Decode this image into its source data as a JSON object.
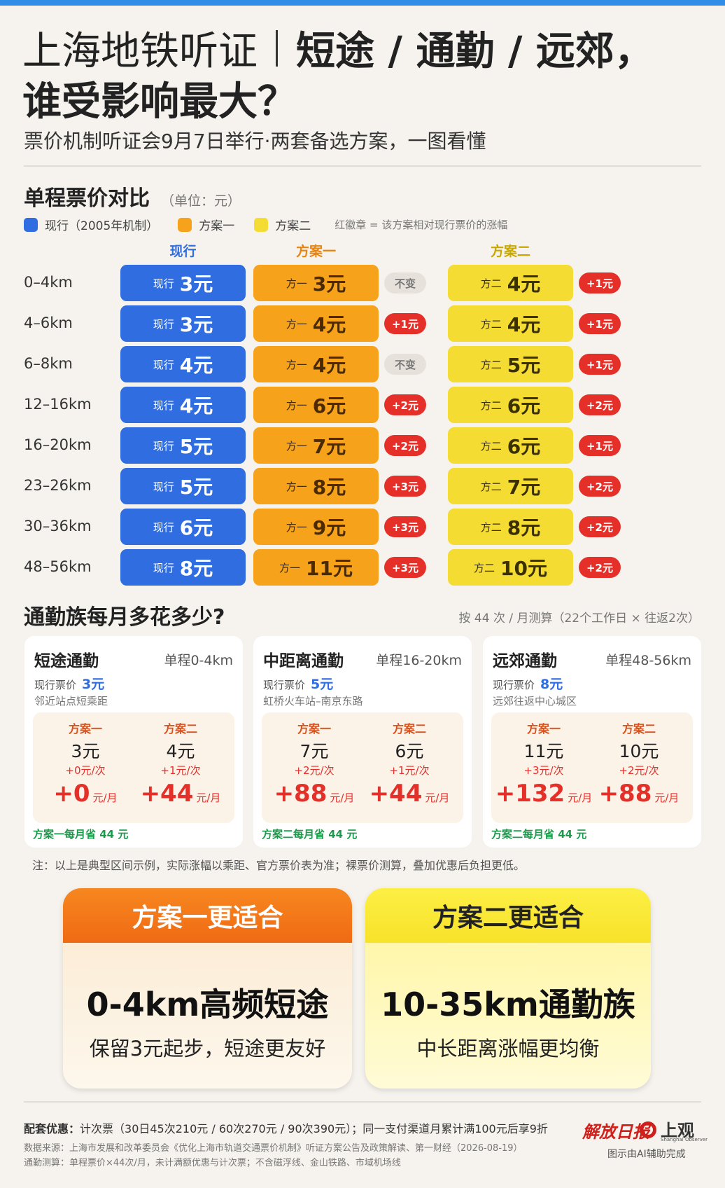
{
  "header": {
    "title_left": "上海地铁听证",
    "title_right": "短途 / 通勤 / 远郊，",
    "title_line2": "谁受影响最大？",
    "subtitle": "票价机制听证会9月7日举行·两套备选方案，一图看懂"
  },
  "fare_table": {
    "title": "单程票价对比",
    "unit": "（单位：元）",
    "legend": [
      "现行（2005年机制）",
      "方案一",
      "方案二"
    ],
    "legend_note": "红徽章 = 该方案相对现行票价的涨幅",
    "columns": [
      {
        "header": "现行",
        "prefix": "现行"
      },
      {
        "header": "方案一",
        "prefix": "方一"
      },
      {
        "header": "方案二",
        "prefix": "方二"
      }
    ],
    "rows": [
      {
        "distance": "0–4km",
        "current": "3元",
        "plan1": "3元",
        "plan1_change": "不变",
        "plan2": "4元",
        "plan2_change": "+1元"
      },
      {
        "distance": "4–6km",
        "current": "3元",
        "plan1": "4元",
        "plan1_change": "+1元",
        "plan2": "4元",
        "plan2_change": "+1元"
      },
      {
        "distance": "6–8km",
        "current": "4元",
        "plan1": "4元",
        "plan1_change": "不变",
        "plan2": "5元",
        "plan2_change": "+1元"
      },
      {
        "distance": "12–16km",
        "current": "4元",
        "plan1": "6元",
        "plan1_change": "+2元",
        "plan2": "6元",
        "plan2_change": "+2元"
      },
      {
        "distance": "16–20km",
        "current": "5元",
        "plan1": "7元",
        "plan1_change": "+2元",
        "plan2": "6元",
        "plan2_change": "+1元"
      },
      {
        "distance": "23–26km",
        "current": "5元",
        "plan1": "8元",
        "plan1_change": "+3元",
        "plan2": "7元",
        "plan2_change": "+2元"
      },
      {
        "distance": "30–36km",
        "current": "6元",
        "plan1": "9元",
        "plan1_change": "+3元",
        "plan2": "8元",
        "plan2_change": "+2元"
      },
      {
        "distance": "48–56km",
        "current": "8元",
        "plan1": "11元",
        "plan1_change": "+3元",
        "plan2": "10元",
        "plan2_change": "+2元"
      }
    ]
  },
  "commute": {
    "title": "通勤族每月多花多少?",
    "method": "按 44 次 / 月测算（22个工作日 × 往返2次）",
    "cards": [
      {
        "name": "短途通勤",
        "range": "单程0-4km",
        "current_label": "现行票价",
        "current_price": "3元",
        "example": "邻近站点短乘距",
        "plans": [
          {
            "name": "方案一",
            "price": "3元",
            "per_trip": "+0元/次",
            "monthly": "+0",
            "monthly_unit": "元/月"
          },
          {
            "name": "方案二",
            "price": "4元",
            "per_trip": "+1元/次",
            "monthly": "+44",
            "monthly_unit": "元/月"
          }
        ],
        "conclusion": "方案一每月省 44 元"
      },
      {
        "name": "中距离通勤",
        "range": "单程16-20km",
        "current_label": "现行票价",
        "current_price": "5元",
        "example": "虹桥火车站–南京东路",
        "plans": [
          {
            "name": "方案一",
            "price": "7元",
            "per_trip": "+2元/次",
            "monthly": "+88",
            "monthly_unit": "元/月"
          },
          {
            "name": "方案二",
            "price": "6元",
            "per_trip": "+1元/次",
            "monthly": "+44",
            "monthly_unit": "元/月"
          }
        ],
        "conclusion": "方案二每月省 44 元"
      },
      {
        "name": "远郊通勤",
        "range": "单程48-56km",
        "current_label": "现行票价",
        "current_price": "8元",
        "example": "远郊往返中心城区",
        "plans": [
          {
            "name": "方案一",
            "price": "11元",
            "per_trip": "+3元/次",
            "monthly": "+132",
            "monthly_unit": "元/月"
          },
          {
            "name": "方案二",
            "price": "10元",
            "per_trip": "+2元/次",
            "monthly": "+88",
            "monthly_unit": "元/月"
          }
        ],
        "conclusion": "方案二每月省 44 元"
      }
    ],
    "note": "注：以上是典型区间示例，实际涨幅以乘距、官方票价表为准；裸票价测算，叠加优惠后负担更低。"
  },
  "recommendations": [
    {
      "header": "方案一更适合",
      "headline": "0-4km高频短途",
      "detail": "保留3元起步，短途更友好"
    },
    {
      "header": "方案二更适合",
      "headline": "10-35km通勤族",
      "detail": "中长距离涨幅更均衡"
    }
  ],
  "footer": {
    "discount_label": "配套优惠：",
    "discount": "计次票（30日45次210元 / 60次270元 / 90次390元）；同一支付渠道月累计满100元后享9折",
    "source": "数据来源：上海市发展和改革委员会《优化上海市轨道交通票价机制》听证方案公告及政策解读、第一财经（2026-08-19）",
    "method": "通勤测算：单程票价×44次/月，未计满额优惠与计次票；不含磁浮线、金山铁路、市域机场线",
    "logo_left": "解放日报",
    "logo_right": "上观",
    "logo_right_en": "Shanghai Observer",
    "credit": "图示由AI辅助完成"
  }
}
